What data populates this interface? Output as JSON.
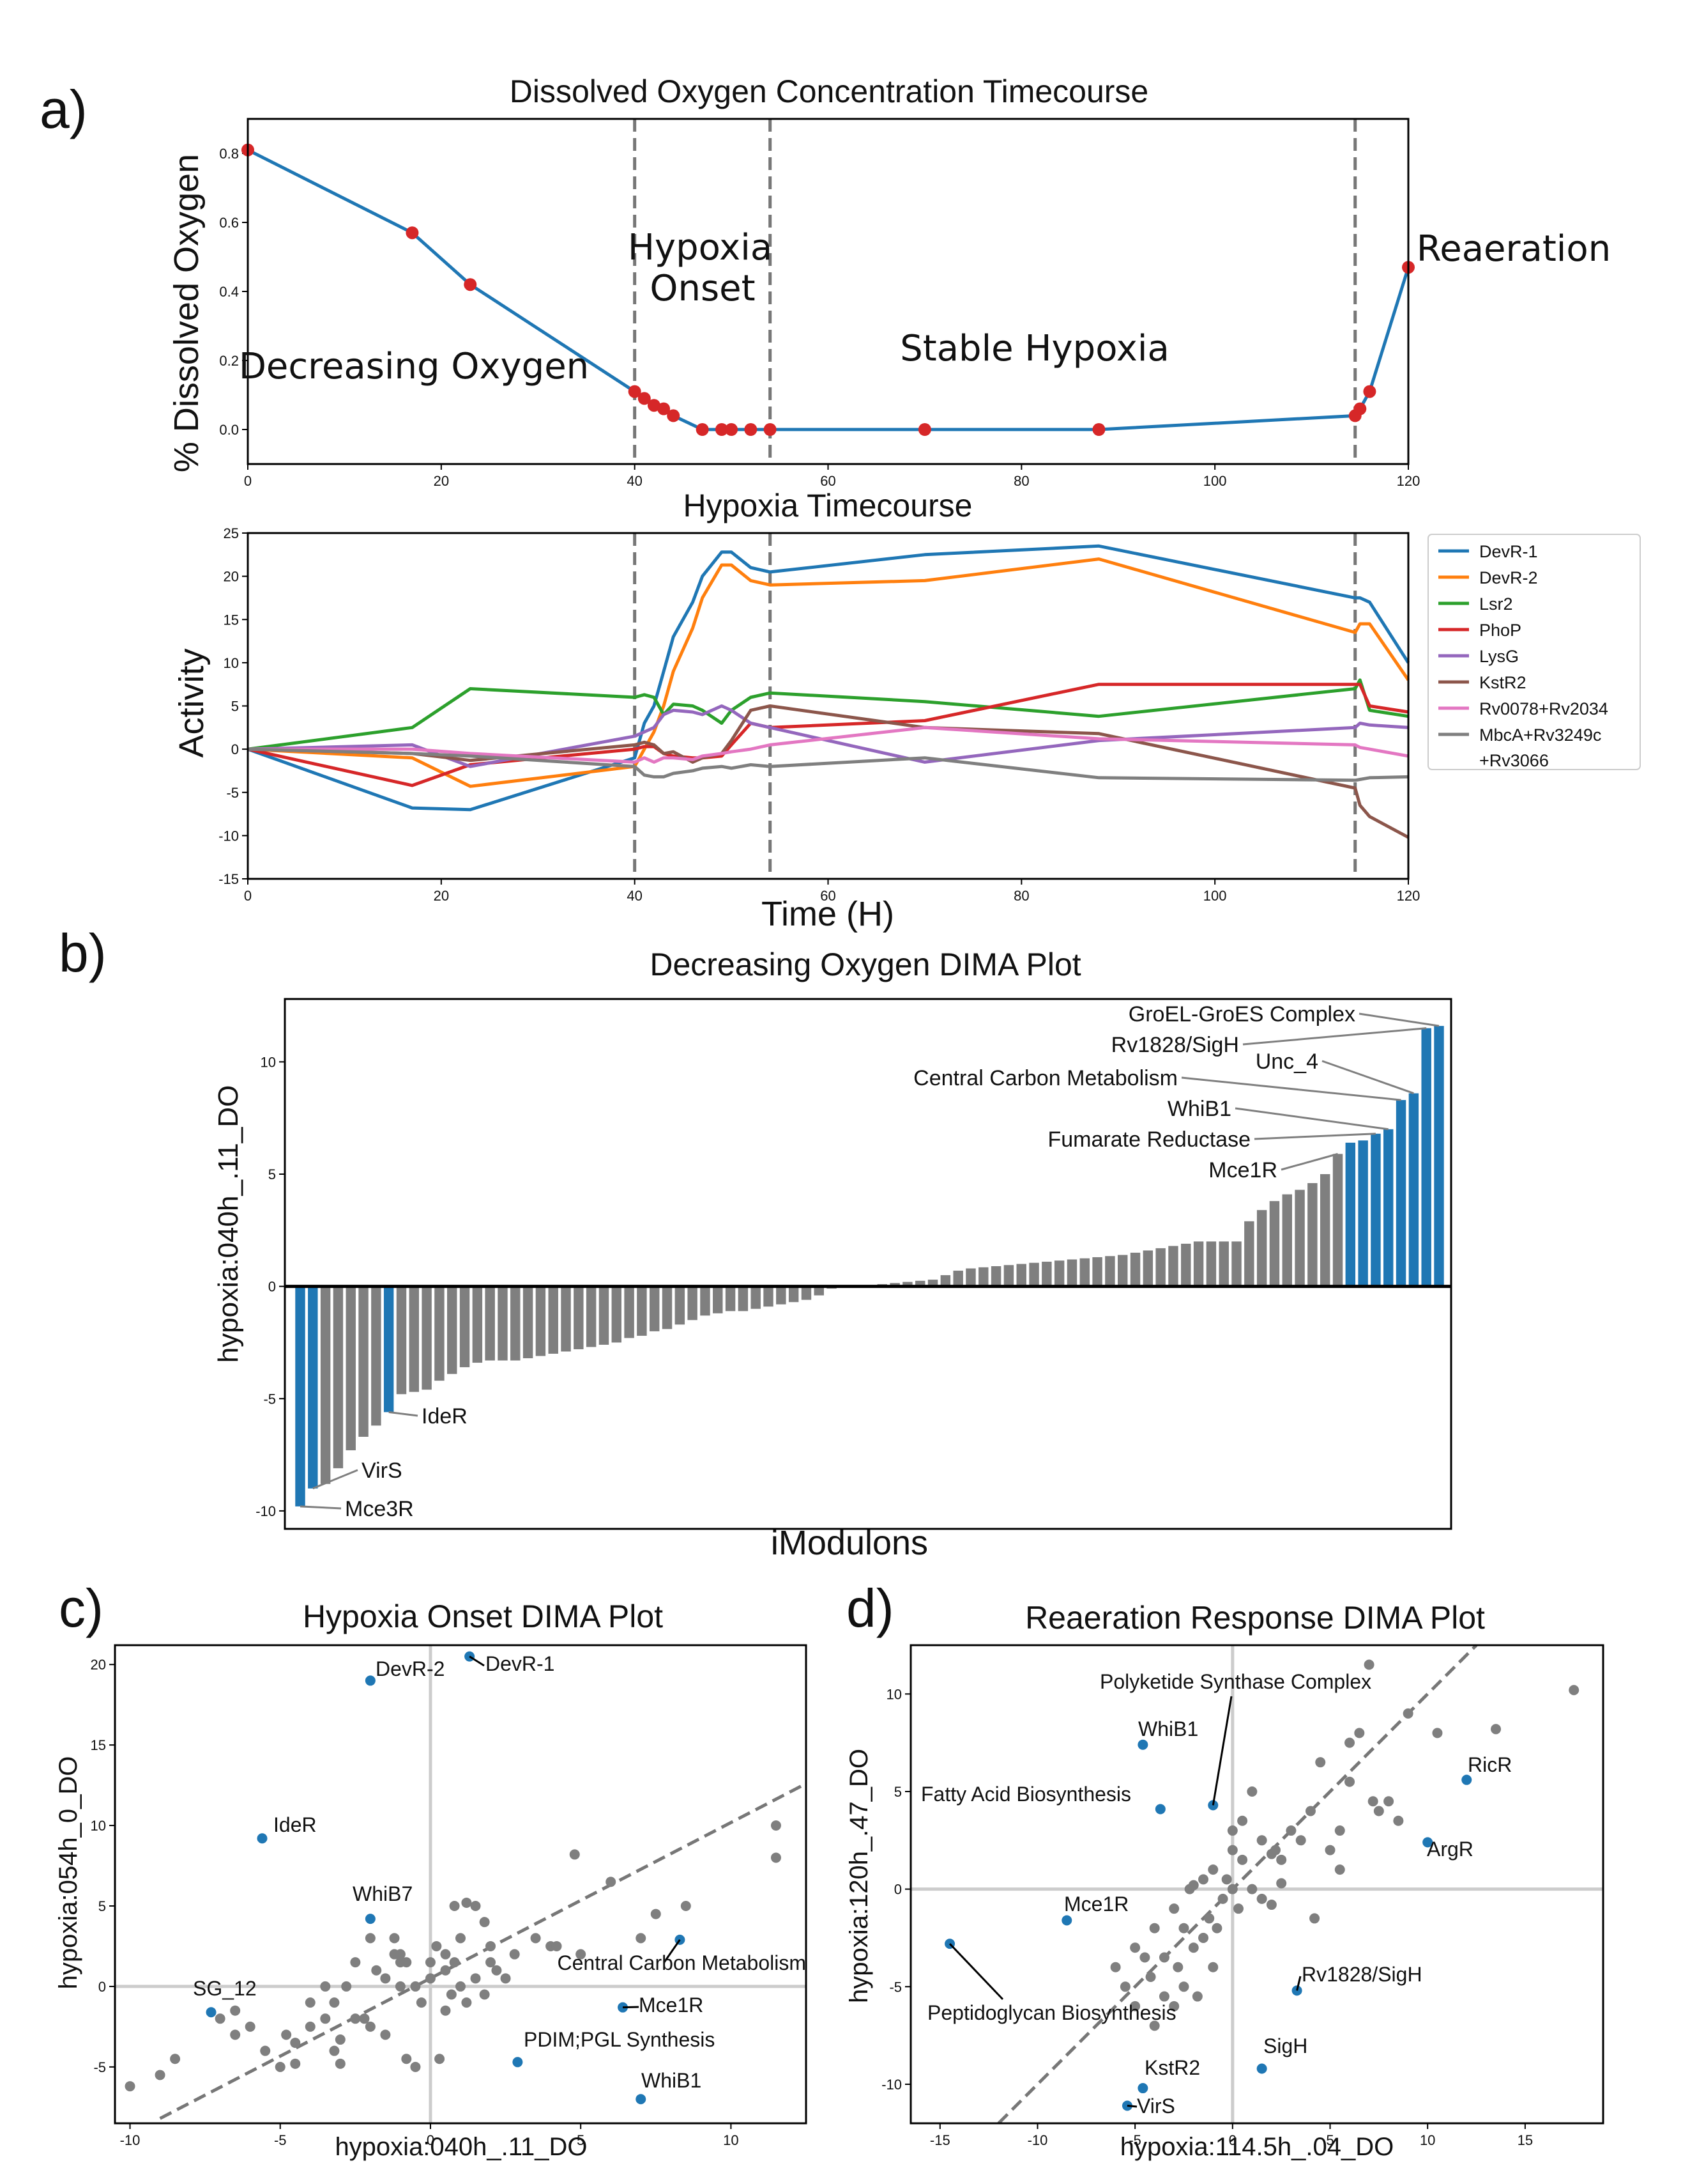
{
  "panel_labels": {
    "a": "a)",
    "b": "b)",
    "c": "c)",
    "d": "d)"
  },
  "chart_data": [
    {
      "id": "dissolved_oxygen",
      "type": "line",
      "title": "Dissolved Oxygen Concentration Timecourse",
      "xlabel": "",
      "ylabel": "% Dissolved Oxygen",
      "xlim": [
        0,
        120
      ],
      "ylim": [
        -0.1,
        0.9
      ],
      "xticks": [
        0,
        20,
        40,
        60,
        80,
        100,
        120
      ],
      "yticks": [
        0.0,
        0.2,
        0.4,
        0.6,
        0.8
      ],
      "line_color": "#1f77b4",
      "marker_color": "#d62728",
      "x": [
        0,
        17,
        23,
        40,
        41,
        42,
        43,
        44,
        47,
        49,
        50,
        52,
        54,
        70,
        88,
        114.5,
        115,
        116,
        120
      ],
      "y": [
        0.81,
        0.57,
        0.42,
        0.11,
        0.09,
        0.07,
        0.06,
        0.04,
        0.0,
        0.0,
        0.0,
        0.0,
        0.0,
        0.0,
        0.0,
        0.04,
        0.06,
        0.11,
        0.47
      ],
      "vlines": [
        40,
        54,
        114.5
      ],
      "regions": [
        {
          "lines": [
            "Decreasing Oxygen"
          ]
        },
        {
          "lines": [
            "Hypoxia",
            "Onset"
          ]
        },
        {
          "lines": [
            "Stable Hypoxia"
          ]
        },
        {
          "lines": [
            "Reaeration"
          ]
        }
      ]
    },
    {
      "id": "imodulon_activity",
      "type": "line",
      "title": "Hypoxia Timecourse",
      "xlabel": "Time (H)",
      "ylabel": "Activity",
      "xlim": [
        0,
        120
      ],
      "ylim": [
        -15,
        25
      ],
      "xticks": [
        0,
        20,
        40,
        60,
        80,
        100,
        120
      ],
      "yticks": [
        -15,
        -10,
        -5,
        0,
        5,
        10,
        15,
        20,
        25
      ],
      "vlines": [
        40,
        54,
        114.5
      ],
      "legend_position": "outside right, top",
      "x": [
        0,
        17,
        23,
        40,
        41,
        42,
        43,
        44,
        46,
        47,
        49,
        50,
        52,
        54,
        70,
        88,
        114.5,
        115,
        116,
        120
      ],
      "series": [
        {
          "name": "DevR-1",
          "color": "#1f77b4",
          "values": [
            0,
            -6.8,
            -7,
            -1,
            3,
            5,
            9,
            13,
            17,
            20,
            22.8,
            22.8,
            21,
            20.5,
            22.5,
            23.5,
            17.5,
            17.5,
            17,
            10
          ]
        },
        {
          "name": "DevR-2",
          "color": "#ff7f0e",
          "values": [
            0,
            -1,
            -4.3,
            -2,
            0,
            2,
            5,
            9,
            14,
            17.5,
            21.3,
            21.3,
            19.5,
            19,
            19.5,
            22,
            13.5,
            14.5,
            14.5,
            8
          ]
        },
        {
          "name": "Lsr2",
          "color": "#2ca02c",
          "values": [
            0,
            2.5,
            7,
            6,
            6.3,
            6,
            4,
            5.2,
            5,
            4.5,
            3,
            4.5,
            6,
            6.5,
            5.5,
            3.8,
            7,
            8,
            4.5,
            3.8
          ]
        },
        {
          "name": "PhoP",
          "color": "#d62728",
          "values": [
            0,
            -4.2,
            -1.8,
            0,
            0.3,
            0.3,
            -0.5,
            -0.8,
            -1,
            -1,
            -0.8,
            0.5,
            3,
            2.5,
            3.3,
            7.5,
            7.5,
            7.5,
            5,
            4.3
          ]
        },
        {
          "name": "LysG",
          "color": "#9467bd",
          "values": [
            0,
            0.5,
            -2,
            1.5,
            2,
            2.5,
            4,
            4.5,
            4.3,
            4,
            5,
            4.5,
            3,
            2.5,
            -1.5,
            1,
            2.5,
            3,
            2.8,
            2.5
          ]
        },
        {
          "name": "KstR2",
          "color": "#8c564b",
          "values": [
            0,
            -0.5,
            -1.3,
            0.5,
            0.8,
            0.5,
            -0.5,
            -0.3,
            -1.5,
            -1,
            -0.5,
            1,
            4.5,
            5,
            2.5,
            1.8,
            -4.5,
            -6.5,
            -7.8,
            -10.2
          ]
        },
        {
          "name": "Rv0078+Rv2034",
          "color": "#e377c2",
          "values": [
            0,
            0,
            -0.5,
            -1.5,
            -1,
            -1.5,
            -1,
            -1,
            -1.2,
            -0.8,
            -0.5,
            -0.3,
            0,
            0.5,
            2.5,
            1.2,
            0.5,
            0.2,
            0,
            -0.8
          ]
        },
        {
          "name": "MbcA+Rv3249c\n+Rv3066",
          "color": "#7f7f7f",
          "values": [
            0,
            -0.5,
            -0.8,
            -2,
            -3,
            -3.2,
            -3.2,
            -2.8,
            -2.5,
            -2.2,
            -2,
            -2.2,
            -1.8,
            -2,
            -1,
            -3.3,
            -3.6,
            -3.5,
            -3.3,
            -3.2
          ]
        }
      ]
    },
    {
      "id": "decreasing_oxygen_dima",
      "type": "bar",
      "title": "Decreasing Oxygen DIMA Plot",
      "xlabel": "iModulons",
      "ylabel": "hypoxia:040h_.11_DO",
      "ylim": [
        -10.8,
        12.8
      ],
      "yticks": [
        -10,
        -5,
        0,
        5,
        10
      ],
      "colors": {
        "highlight": "#1f77b4",
        "other": "#7f7f7f"
      },
      "values": [
        -9.8,
        -9,
        -8.8,
        -8.1,
        -7.3,
        -6.7,
        -6.2,
        -5.6,
        -4.8,
        -4.7,
        -4.6,
        -4.2,
        -3.9,
        -3.6,
        -3.4,
        -3.3,
        -3.3,
        -3.3,
        -3.2,
        -3.1,
        -3.0,
        -2.9,
        -2.8,
        -2.7,
        -2.6,
        -2.5,
        -2.3,
        -2.2,
        -2.0,
        -1.9,
        -1.7,
        -1.5,
        -1.3,
        -1.2,
        -1.1,
        -1.1,
        -1.0,
        -0.9,
        -0.8,
        -0.7,
        -0.6,
        -0.4,
        -0.1,
        -0.05,
        0,
        0.05,
        0.1,
        0.15,
        0.2,
        0.25,
        0.3,
        0.5,
        0.7,
        0.8,
        0.85,
        0.9,
        0.95,
        1.0,
        1.05,
        1.1,
        1.15,
        1.2,
        1.25,
        1.3,
        1.35,
        1.4,
        1.5,
        1.6,
        1.7,
        1.8,
        1.9,
        2.0,
        2.0,
        2.0,
        2.0,
        2.9,
        3.4,
        3.8,
        4.1,
        4.3,
        4.6,
        5.0,
        5.9,
        6.4,
        6.5,
        6.8,
        7.0,
        8.3,
        8.6,
        11.5,
        11.6
      ],
      "highlight_indices": [
        0,
        1,
        7,
        83,
        84,
        85,
        86,
        87,
        88,
        89,
        90
      ],
      "annotations": [
        {
          "label": "Mce3R",
          "bar": 0
        },
        {
          "label": "VirS",
          "bar": 1
        },
        {
          "label": "IdeR",
          "bar": 7
        },
        {
          "label": "Mce1R",
          "bar": 82
        },
        {
          "label": "Fumarate Reductase",
          "bar": 85
        },
        {
          "label": "WhiB1",
          "bar": 86
        },
        {
          "label": "Central Carbon Metabolism",
          "bar": 87
        },
        {
          "label": "Unc_4",
          "bar": 88
        },
        {
          "label": "Rv1828/SigH",
          "bar": 89
        },
        {
          "label": "GroEL-GroES Complex",
          "bar": 90
        }
      ]
    },
    {
      "id": "hypoxia_onset_dima",
      "type": "scatter",
      "title": "Hypoxia Onset DIMA Plot",
      "xlabel": "hypoxia:040h_.11_DO",
      "ylabel": "hypoxia:054h_0_DO",
      "xlim": [
        -10.5,
        12.5
      ],
      "ylim": [
        -8.5,
        21.2
      ],
      "xticks": [
        -10,
        -5,
        0,
        5,
        10
      ],
      "yticks": [
        -5,
        0,
        5,
        10,
        15,
        20
      ],
      "diagonal": {
        "from": [
          -9,
          -8.2
        ],
        "to": [
          12.5,
          12.6
        ]
      },
      "colors": {
        "highlight": "#1f77b4",
        "other": "#7f7f7f"
      },
      "points": [
        [
          -10,
          -6.2
        ],
        [
          -9,
          -5.5
        ],
        [
          -8.5,
          -4.5
        ],
        [
          -7,
          -2
        ],
        [
          -6.5,
          -1.5
        ],
        [
          -6.5,
          -3
        ],
        [
          -6,
          -2.5
        ],
        [
          -5.5,
          -4
        ],
        [
          -5,
          -5
        ],
        [
          -4.8,
          -3
        ],
        [
          -4.5,
          -3.5
        ],
        [
          -4.5,
          -4.8
        ],
        [
          -4,
          -1
        ],
        [
          -4,
          -2.5
        ],
        [
          -3.5,
          -2
        ],
        [
          -3.5,
          0
        ],
        [
          -3.2,
          -1
        ],
        [
          -3.2,
          -4
        ],
        [
          -3,
          -3.3
        ],
        [
          -3,
          -4.8
        ],
        [
          -2.8,
          0
        ],
        [
          -2.5,
          -2
        ],
        [
          -2.5,
          1.5
        ],
        [
          -2.2,
          -2
        ],
        [
          -2,
          -2.5
        ],
        [
          -2,
          3
        ],
        [
          -1.8,
          1
        ],
        [
          -1.5,
          -3
        ],
        [
          -1.5,
          0.5
        ],
        [
          -1.2,
          2
        ],
        [
          -1.2,
          3
        ],
        [
          -1,
          0
        ],
        [
          -1,
          1.5
        ],
        [
          -1,
          2
        ],
        [
          -0.8,
          -4.5
        ],
        [
          -0.8,
          1.5
        ],
        [
          -0.5,
          -5
        ],
        [
          -0.5,
          0
        ],
        [
          -0.3,
          -1
        ],
        [
          0,
          0.5
        ],
        [
          0,
          1.5
        ],
        [
          0.2,
          2.5
        ],
        [
          0.3,
          -4.5
        ],
        [
          0.5,
          -1.5
        ],
        [
          0.5,
          1
        ],
        [
          0.5,
          2
        ],
        [
          0.7,
          -0.5
        ],
        [
          0.8,
          1.5
        ],
        [
          0.8,
          5
        ],
        [
          1,
          0
        ],
        [
          1,
          3
        ],
        [
          1.2,
          5.2
        ],
        [
          1.2,
          -1
        ],
        [
          1.5,
          0.5
        ],
        [
          1.5,
          5
        ],
        [
          1.8,
          -0.5
        ],
        [
          1.8,
          4
        ],
        [
          2,
          1.5
        ],
        [
          2,
          2.5
        ],
        [
          2.2,
          1
        ],
        [
          2.5,
          0.5
        ],
        [
          2.8,
          2
        ],
        [
          3.5,
          3
        ],
        [
          4,
          2.5
        ],
        [
          4.2,
          2.5
        ],
        [
          4.8,
          8.2
        ],
        [
          5,
          2
        ],
        [
          6,
          6.5
        ],
        [
          7,
          3
        ],
        [
          7.5,
          4.5
        ],
        [
          8.5,
          5
        ],
        [
          11.5,
          10
        ],
        [
          11.5,
          8
        ]
      ],
      "highlighted": [
        {
          "label": "DevR-1",
          "x": 1.3,
          "y": 20.5
        },
        {
          "label": "DevR-2",
          "x": -2,
          "y": 19
        },
        {
          "label": "IdeR",
          "x": -5.6,
          "y": 9.2
        },
        {
          "label": "WhiB7",
          "x": -2,
          "y": 4.2
        },
        {
          "label": "SG_12",
          "x": -7.3,
          "y": -1.6
        },
        {
          "label": "Central Carbon Metabolism",
          "x": 8.3,
          "y": 2.9
        },
        {
          "label": "Mce1R",
          "x": 6.4,
          "y": -1.3
        },
        {
          "label": "PDIM;PGL Synthesis",
          "x": 2.9,
          "y": -4.7
        },
        {
          "label": "WhiB1",
          "x": 7,
          "y": -7
        }
      ]
    },
    {
      "id": "reaeration_response_dima",
      "type": "scatter",
      "title": "Reaeration Response DIMA Plot",
      "xlabel": "hypoxia:114.5h_.04_DO",
      "ylabel": "hypoxia:120h_.47_DO",
      "xlim": [
        -16.5,
        19
      ],
      "ylim": [
        -12,
        12.5
      ],
      "xticks": [
        -15,
        -10,
        -5,
        0,
        5,
        10,
        15
      ],
      "yticks": [
        -10,
        -5,
        0,
        5,
        10
      ],
      "diagonal": {
        "from": [
          -12,
          -12
        ],
        "to": [
          12.5,
          12.5
        ]
      },
      "colors": {
        "highlight": "#1f77b4",
        "other": "#7f7f7f"
      },
      "points": [
        [
          -6,
          -4
        ],
        [
          -5.5,
          -5
        ],
        [
          -5,
          -3
        ],
        [
          -5,
          -6
        ],
        [
          -4.5,
          -3.5
        ],
        [
          -4.2,
          -4.5
        ],
        [
          -4,
          -2
        ],
        [
          -4,
          -7
        ],
        [
          -3.5,
          -3.5
        ],
        [
          -3.5,
          -5.5
        ],
        [
          -3,
          -1
        ],
        [
          -3,
          -6
        ],
        [
          -2.8,
          -4
        ],
        [
          -2.5,
          -2
        ],
        [
          -2.5,
          -5
        ],
        [
          -2.2,
          0
        ],
        [
          -2,
          0.2
        ],
        [
          -2,
          -3
        ],
        [
          -1.8,
          -5.5
        ],
        [
          -1.5,
          -2.5
        ],
        [
          -1.5,
          0.5
        ],
        [
          -1.2,
          -1.5
        ],
        [
          -1,
          -4
        ],
        [
          -1,
          1
        ],
        [
          -0.8,
          -2
        ],
        [
          -0.5,
          -0.5
        ],
        [
          -0.3,
          0.5
        ],
        [
          0,
          0
        ],
        [
          0,
          2
        ],
        [
          0,
          3
        ],
        [
          0.3,
          -1
        ],
        [
          0.5,
          1.5
        ],
        [
          0.5,
          3.5
        ],
        [
          1,
          0
        ],
        [
          1,
          5
        ],
        [
          1.5,
          2.5
        ],
        [
          1.5,
          -0.5
        ],
        [
          2,
          1.8
        ],
        [
          2,
          -0.8
        ],
        [
          2.2,
          2
        ],
        [
          2.5,
          1.5
        ],
        [
          2.5,
          0.3
        ],
        [
          3,
          3
        ],
        [
          3.5,
          2.5
        ],
        [
          4,
          4
        ],
        [
          4.5,
          6.5
        ],
        [
          5,
          2
        ],
        [
          5.5,
          1
        ],
        [
          6,
          7.5
        ],
        [
          6.5,
          8
        ],
        [
          7,
          11.5
        ],
        [
          7.2,
          4.5
        ],
        [
          7.5,
          4
        ],
        [
          8,
          4.5
        ],
        [
          8.5,
          3.5
        ],
        [
          9,
          9
        ],
        [
          10.5,
          8
        ],
        [
          13.5,
          8.2
        ],
        [
          17.5,
          10.2
        ],
        [
          4.2,
          -1.5
        ],
        [
          5.5,
          3
        ],
        [
          6,
          5.5
        ]
      ],
      "highlighted": [
        {
          "label": "Polyketide Synthase Complex",
          "x": -1,
          "y": 4.3
        },
        {
          "label": "WhiB1",
          "x": -4.6,
          "y": 7.4
        },
        {
          "label": "Fatty Acid Biosynthesis",
          "x": -3.7,
          "y": 4.1
        },
        {
          "label": "RicR",
          "x": 12,
          "y": 5.6
        },
        {
          "label": "ArgR",
          "x": 10,
          "y": 2.4
        },
        {
          "label": "Mce1R",
          "x": -8.5,
          "y": -1.6
        },
        {
          "label": "Peptidoglycan Biosynthesis",
          "x": -14.5,
          "y": -2.8
        },
        {
          "label": "Rv1828/SigH",
          "x": 3.3,
          "y": -5.2
        },
        {
          "label": "SigH",
          "x": 1.5,
          "y": -9.2
        },
        {
          "label": "KstR2",
          "x": -4.6,
          "y": -10.2
        },
        {
          "label": "VirS",
          "x": -5.4,
          "y": -11.1
        }
      ]
    }
  ]
}
